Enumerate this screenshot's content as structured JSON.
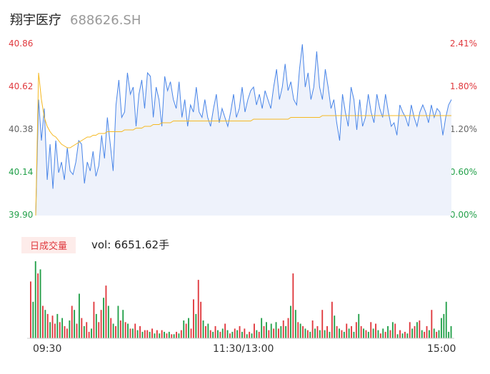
{
  "header": {
    "name": "翔宇医疗",
    "code": "688626.SH"
  },
  "price_axis": [
    "40.86",
    "40.62",
    "40.38",
    "40.14",
    "39.90"
  ],
  "pct_axis": [
    "2.41%",
    "1.80%",
    "1.20%",
    "0.60%",
    "0.00%"
  ],
  "volume": {
    "badge": "日成交量",
    "text": "vol: 6651.62手"
  },
  "time_axis": [
    "09:30",
    "11:30/13:00",
    "15:00"
  ],
  "colors": {
    "price_line": "#4a86e8",
    "avg_line": "#f5b820",
    "up": "#e0393e",
    "down": "#23a04a",
    "area": "#eef2fb"
  },
  "chart_data": [
    {
      "type": "line",
      "ylim": [
        39.9,
        40.86
      ],
      "y2lim": [
        0.0,
        2.41
      ],
      "series": [
        {
          "values": [
            39.9,
            40.55,
            40.32,
            40.5,
            40.1,
            40.3,
            40.05,
            40.32,
            40.14,
            40.2,
            40.1,
            40.28,
            40.15,
            40.13,
            40.2,
            40.32,
            40.3,
            40.08,
            40.2,
            40.15,
            40.26,
            40.12,
            40.18,
            40.35,
            40.22,
            40.45,
            40.3,
            40.15,
            40.52,
            40.66,
            40.45,
            40.48,
            40.7,
            40.58,
            40.62,
            40.4,
            40.58,
            40.66,
            40.5,
            40.7,
            40.68,
            40.45,
            40.62,
            40.55,
            40.4,
            40.68,
            40.6,
            40.65,
            40.55,
            40.5,
            40.65,
            40.45,
            40.55,
            40.4,
            40.52,
            40.48,
            40.62,
            40.48,
            40.45,
            40.55,
            40.45,
            40.4,
            40.5,
            40.58,
            40.42,
            40.5,
            40.45,
            40.4,
            40.48,
            40.58,
            40.45,
            40.5,
            40.62,
            40.48,
            40.55,
            40.6,
            40.62,
            40.52,
            40.58,
            40.5,
            40.6,
            40.55,
            40.5,
            40.62,
            40.72,
            40.55,
            40.62,
            40.75,
            40.6,
            40.65,
            40.55,
            40.52,
            40.72,
            40.86,
            40.62,
            40.7,
            40.55,
            40.62,
            40.82,
            40.62,
            40.55,
            40.72,
            40.62,
            40.5,
            40.55,
            40.42,
            40.32,
            40.58,
            40.48,
            40.4,
            40.62,
            40.55,
            40.38,
            40.55,
            40.4,
            40.45,
            40.58,
            40.48,
            40.42,
            40.58,
            40.5,
            40.45,
            40.58,
            40.48,
            40.4,
            40.42,
            40.35,
            40.52,
            40.48,
            40.45,
            40.4,
            40.52,
            40.45,
            40.4,
            40.48,
            40.52,
            40.48,
            40.42,
            40.52,
            40.45,
            40.5,
            40.48,
            40.35,
            40.45,
            40.52,
            40.55
          ],
          "color": "#4a86e8"
        },
        {
          "values": [
            39.9,
            40.7,
            40.55,
            40.45,
            40.4,
            40.37,
            40.35,
            40.34,
            40.32,
            40.3,
            40.29,
            40.28,
            40.28,
            40.29,
            40.3,
            40.31,
            40.32,
            40.33,
            40.34,
            40.34,
            40.35,
            40.35,
            40.36,
            40.36,
            40.36,
            40.37,
            40.37,
            40.37,
            40.37,
            40.37,
            40.37,
            40.38,
            40.38,
            40.38,
            40.38,
            40.39,
            40.39,
            40.39,
            40.4,
            40.4,
            40.4,
            40.41,
            40.41,
            40.41,
            40.42,
            40.42,
            40.42,
            40.42,
            40.43,
            40.43,
            40.43,
            40.43,
            40.43,
            40.43,
            40.43,
            40.43,
            40.43,
            40.43,
            40.43,
            40.43,
            40.43,
            40.43,
            40.43,
            40.43,
            40.43,
            40.43,
            40.43,
            40.43,
            40.43,
            40.43,
            40.43,
            40.43,
            40.43,
            40.43,
            40.43,
            40.43,
            40.44,
            40.44,
            40.44,
            40.44,
            40.44,
            40.44,
            40.44,
            40.44,
            40.44,
            40.44,
            40.44,
            40.44,
            40.44,
            40.45,
            40.45,
            40.45,
            40.45,
            40.45,
            40.45,
            40.45,
            40.45,
            40.45,
            40.45,
            40.45,
            40.46,
            40.46,
            40.46,
            40.46,
            40.46,
            40.46,
            40.46,
            40.46,
            40.46,
            40.46,
            40.46,
            40.46,
            40.46,
            40.46,
            40.46,
            40.46,
            40.46,
            40.46,
            40.46,
            40.46,
            40.46,
            40.46,
            40.46,
            40.46,
            40.46,
            40.46,
            40.46,
            40.46,
            40.46,
            40.46,
            40.46,
            40.46,
            40.46,
            40.46,
            40.46,
            40.46,
            40.46,
            40.46,
            40.46,
            40.46,
            40.46,
            40.46,
            40.46,
            40.46,
            40.46,
            40.46
          ],
          "color": "#f5b820"
        }
      ]
    },
    {
      "type": "bar",
      "values": [
        70,
        45,
        95,
        80,
        85,
        40,
        35,
        30,
        20,
        28,
        18,
        30,
        20,
        25,
        15,
        12,
        22,
        40,
        35,
        18,
        55,
        25,
        15,
        20,
        8,
        12,
        45,
        30,
        20,
        35,
        50,
        65,
        40,
        25,
        18,
        15,
        40,
        22,
        35,
        20,
        18,
        12,
        12,
        18,
        10,
        15,
        8,
        10,
        10,
        8,
        12,
        6,
        10,
        6,
        10,
        8,
        6,
        8,
        5,
        5,
        8,
        6,
        10,
        22,
        18,
        25,
        12,
        48,
        30,
        72,
        45,
        22,
        15,
        18,
        10,
        8,
        15,
        10,
        8,
        12,
        18,
        10,
        6,
        8,
        12,
        10,
        15,
        8,
        12,
        5,
        8,
        6,
        18,
        10,
        8,
        25,
        15,
        20,
        10,
        18,
        12,
        20,
        12,
        15,
        22,
        15,
        25,
        40,
        80,
        35,
        20,
        18,
        15,
        12,
        10,
        8,
        22,
        12,
        15,
        10,
        35,
        10,
        15,
        8,
        45,
        28,
        15,
        12,
        10,
        8,
        18,
        12,
        15,
        8,
        20,
        30,
        15,
        12,
        10,
        8,
        20,
        12,
        18,
        10,
        6,
        12,
        8,
        15,
        10,
        20,
        18,
        5,
        10,
        6,
        8,
        6,
        20,
        12,
        15,
        20,
        22,
        10,
        8,
        15,
        10,
        35,
        12,
        8,
        10,
        25,
        30,
        45,
        8,
        15
      ],
      "colors": [
        "up",
        "down",
        "down",
        "up",
        "down",
        "up",
        "down",
        "up",
        "down",
        "up",
        "up",
        "down",
        "up",
        "down",
        "up",
        "up",
        "down",
        "up",
        "down",
        "up",
        "down",
        "up",
        "down",
        "up",
        "up",
        "down",
        "up",
        "down",
        "up",
        "up",
        "down",
        "up",
        "down",
        "up",
        "down",
        "up",
        "down",
        "up",
        "down",
        "up",
        "down",
        "up",
        "down",
        "up",
        "down",
        "up",
        "down",
        "up",
        "up",
        "down",
        "up",
        "down",
        "up",
        "down",
        "up",
        "down",
        "up",
        "down",
        "up",
        "down",
        "up",
        "down",
        "up",
        "down",
        "up",
        "down",
        "up",
        "up",
        "down",
        "up",
        "up",
        "down",
        "up",
        "down",
        "up",
        "down",
        "up",
        "down",
        "up",
        "down",
        "up",
        "down",
        "up",
        "down",
        "up",
        "down",
        "up",
        "down",
        "up",
        "down",
        "up",
        "down",
        "up",
        "down",
        "up",
        "down",
        "up",
        "down",
        "up",
        "down",
        "up",
        "down",
        "up",
        "down",
        "up",
        "down",
        "up",
        "down",
        "up",
        "down",
        "up",
        "down",
        "up",
        "down",
        "up",
        "down",
        "up",
        "down",
        "up",
        "down",
        "up",
        "down",
        "up",
        "down",
        "up",
        "down",
        "up",
        "down",
        "up",
        "down",
        "up",
        "down",
        "up",
        "down",
        "up",
        "down",
        "up",
        "down",
        "up",
        "down",
        "up",
        "down",
        "up",
        "down",
        "up",
        "down",
        "up",
        "down",
        "up",
        "down",
        "up",
        "down",
        "up",
        "down",
        "up",
        "down",
        "up",
        "down",
        "up",
        "down",
        "up",
        "down",
        "up",
        "up",
        "down",
        "up",
        "down",
        "up"
      ]
    }
  ]
}
